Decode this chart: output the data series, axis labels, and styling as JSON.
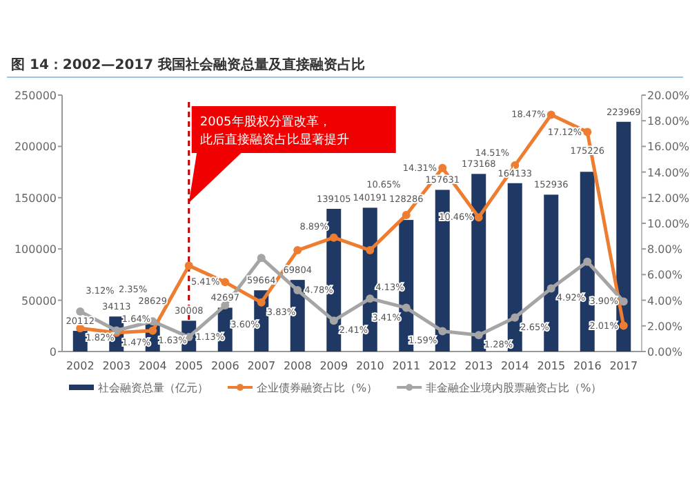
{
  "chart_data": {
    "type": "bar",
    "title": "图 14：2002—2017 我国社会融资总量及直接融资占比",
    "categories": [
      "2002",
      "2003",
      "2004",
      "2005",
      "2006",
      "2007",
      "2008",
      "2009",
      "2010",
      "2011",
      "2012",
      "2013",
      "2014",
      "2015",
      "2016",
      "2017"
    ],
    "series": [
      {
        "name": "社会融资总量（亿元）",
        "color": "#1f3864",
        "values": [
          20112,
          34113,
          28629,
          30008,
          42697,
          59664,
          69804,
          139105,
          140191,
          128286,
          157631,
          173168,
          164133,
          152936,
          175226,
          223969
        ],
        "value_labels": [
          "20112",
          "34113",
          "28629",
          "30008",
          "42697",
          "59664",
          "69804",
          "139105",
          "140191",
          "128286",
          "157631",
          "173168",
          "164133",
          "152936",
          "175226",
          "223969"
        ]
      },
      {
        "name": "企业债券融资占比（%）",
        "type": "line",
        "axis": "y2",
        "color": "#ed7d31",
        "values": [
          1.82,
          1.47,
          1.63,
          6.7,
          5.41,
          3.83,
          7.9,
          8.89,
          7.9,
          10.65,
          14.31,
          10.46,
          14.51,
          18.47,
          17.12,
          2.01
        ],
        "value_labels": [
          "1.82%",
          "1.47%",
          "1.63%",
          null,
          "5.41%",
          "3.83%",
          null,
          "8.89%",
          null,
          "10.65%",
          "14.31%",
          "10.46%",
          "14.51%",
          "18.47%",
          "17.12%",
          "2.01%"
        ]
      },
      {
        "name": "非金融企业境内股票融资占比（%）",
        "type": "line",
        "axis": "y2",
        "color": "#a5a5a5",
        "values": [
          3.12,
          1.64,
          2.35,
          1.13,
          3.6,
          7.3,
          4.78,
          2.41,
          4.13,
          3.41,
          1.59,
          1.28,
          2.65,
          4.92,
          7.0,
          3.9
        ],
        "value_labels": [
          "3.12%",
          "1.64%",
          "2.35%",
          "1.13%",
          "3.60%",
          null,
          "4.78%",
          "2.41%",
          "4.13%",
          "3.41%",
          "1.59%",
          "1.28%",
          "2.65%",
          "4.92%",
          null,
          "3.90%"
        ]
      }
    ],
    "ylim": [
      0,
      250000
    ],
    "yticks": [
      0,
      50000,
      100000,
      150000,
      200000,
      250000
    ],
    "y2lim": [
      0,
      20
    ],
    "y2ticks": [
      {
        "value": 0,
        "label": "0.00%"
      },
      {
        "value": 2,
        "label": "2.00%"
      },
      {
        "value": 4,
        "label": "4.00%"
      },
      {
        "value": 6,
        "label": "6.00%"
      },
      {
        "value": 8,
        "label": "8.00%"
      },
      {
        "value": 10,
        "label": "10.00%"
      },
      {
        "value": 12,
        "label": "12.00%"
      },
      {
        "value": 14,
        "label": "14.00%"
      },
      {
        "value": 16,
        "label": "16.00%"
      },
      {
        "value": 18,
        "label": "18.00%"
      },
      {
        "value": 20,
        "label": "20.00%"
      }
    ],
    "ref_lines": [
      {
        "axis": "x",
        "value": "2005",
        "color": "#c00000",
        "line_style": "dashed"
      }
    ],
    "annotations": [
      "2005年股权分置改革，此后直接融资占比显著提升"
    ],
    "marker": "circle",
    "legend": "bottom",
    "grid": false
  }
}
